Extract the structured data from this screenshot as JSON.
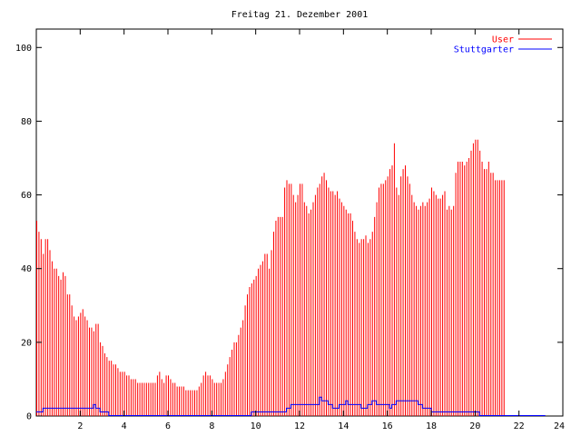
{
  "chart_data": {
    "type": "bar",
    "title": "Freitag 21. Dezember 2001",
    "xlabel": "",
    "ylabel": "",
    "xlim": [
      0,
      24
    ],
    "ylim": [
      0,
      105
    ],
    "x_ticks": [
      2,
      4,
      6,
      8,
      10,
      12,
      14,
      16,
      18,
      20,
      22,
      24
    ],
    "x_tick_labels": [
      "2",
      "4",
      "6",
      "8",
      "10",
      "12",
      "14",
      "16",
      "18",
      "20",
      "22",
      "24"
    ],
    "y_ticks": [
      0,
      20,
      40,
      60,
      80,
      100
    ],
    "y_tick_labels": [
      "0",
      "20",
      "40",
      "60",
      "80",
      "100"
    ],
    "grid": false,
    "legend_position": "top-right",
    "sample_interval_hours": 0.1,
    "series": [
      {
        "name": "User",
        "color": "#ff0000",
        "style": "impulses",
        "values": [
          53,
          50,
          48,
          44,
          48,
          48,
          45,
          42,
          40,
          40,
          38,
          37,
          39,
          38,
          33,
          33,
          30,
          27,
          26,
          27,
          28,
          29,
          27,
          26,
          24,
          24,
          23,
          25,
          25,
          20,
          19,
          17,
          16,
          15,
          15,
          14,
          14,
          13,
          12,
          12,
          12,
          11,
          11,
          10,
          10,
          10,
          9,
          9,
          9,
          9,
          9,
          9,
          9,
          9,
          9,
          11,
          12,
          10,
          9,
          11,
          11,
          10,
          9,
          9,
          8,
          8,
          8,
          8,
          7,
          7,
          7,
          7,
          7,
          7,
          8,
          9,
          11,
          12,
          11,
          11,
          10,
          9,
          9,
          9,
          9,
          10,
          12,
          14,
          16,
          18,
          20,
          20,
          22,
          24,
          26,
          30,
          33,
          35,
          36,
          37,
          38,
          40,
          41,
          42,
          44,
          44,
          40,
          45,
          50,
          53,
          54,
          54,
          54,
          62,
          64,
          63,
          63,
          60,
          58,
          60,
          63,
          63,
          58,
          57,
          55,
          56,
          58,
          60,
          62,
          63,
          65,
          66,
          64,
          62,
          61,
          61,
          60,
          61,
          59,
          58,
          57,
          56,
          55,
          55,
          53,
          50,
          48,
          47,
          48,
          48,
          49,
          47,
          48,
          50,
          54,
          58,
          62,
          63,
          63,
          64,
          65,
          67,
          68,
          74,
          62,
          60,
          65,
          67,
          68,
          65,
          63,
          60,
          58,
          57,
          56,
          57,
          58,
          57,
          58,
          59,
          62,
          61,
          60,
          59,
          59,
          60,
          61,
          56,
          57,
          56,
          57,
          66,
          69,
          69,
          69,
          68,
          69,
          70,
          72,
          74,
          75,
          75,
          72,
          69,
          67,
          67,
          69,
          66,
          66,
          64,
          64,
          64,
          64,
          64
        ]
      },
      {
        "name": "Stuttgarter",
        "color": "#0000ff",
        "style": "steps",
        "values": [
          1,
          1,
          1,
          2,
          2,
          2,
          2,
          2,
          2,
          2,
          2,
          2,
          2,
          2,
          2,
          2,
          2,
          2,
          2,
          2,
          2,
          2,
          2,
          2,
          2,
          2,
          3,
          2,
          2,
          1,
          1,
          1,
          1,
          0,
          0,
          0,
          0,
          0,
          0,
          0,
          0,
          0,
          0,
          0,
          0,
          0,
          0,
          0,
          0,
          0,
          0,
          0,
          0,
          0,
          0,
          0,
          0,
          0,
          0,
          0,
          0,
          0,
          0,
          0,
          0,
          0,
          0,
          0,
          0,
          0,
          0,
          0,
          0,
          0,
          0,
          0,
          0,
          0,
          0,
          0,
          0,
          0,
          0,
          0,
          0,
          0,
          0,
          0,
          0,
          0,
          0,
          0,
          0,
          0,
          0,
          0,
          0,
          0,
          1,
          1,
          1,
          1,
          1,
          1,
          1,
          1,
          1,
          1,
          1,
          1,
          1,
          1,
          1,
          1,
          2,
          2,
          3,
          3,
          3,
          3,
          3,
          3,
          3,
          3,
          3,
          3,
          3,
          3,
          3,
          5,
          4,
          4,
          4,
          3,
          3,
          2,
          2,
          2,
          3,
          3,
          3,
          4,
          3,
          3,
          3,
          3,
          3,
          3,
          2,
          2,
          2,
          3,
          3,
          4,
          4,
          3,
          3,
          3,
          3,
          3,
          3,
          2,
          3,
          3,
          4,
          4,
          4,
          4,
          4,
          4,
          4,
          4,
          4,
          4,
          3,
          3,
          2,
          2,
          2,
          2,
          1,
          1,
          1,
          1,
          1,
          1,
          1,
          1,
          1,
          1,
          1,
          1,
          1,
          1,
          1,
          1,
          1,
          1,
          1,
          1,
          1,
          1,
          0,
          0,
          0,
          0,
          0,
          0,
          0,
          0,
          0,
          0,
          0,
          0,
          0,
          0,
          0,
          0,
          0,
          0,
          0,
          0,
          0,
          0,
          0,
          0,
          0,
          0,
          0,
          0,
          0,
          0
        ]
      }
    ]
  }
}
